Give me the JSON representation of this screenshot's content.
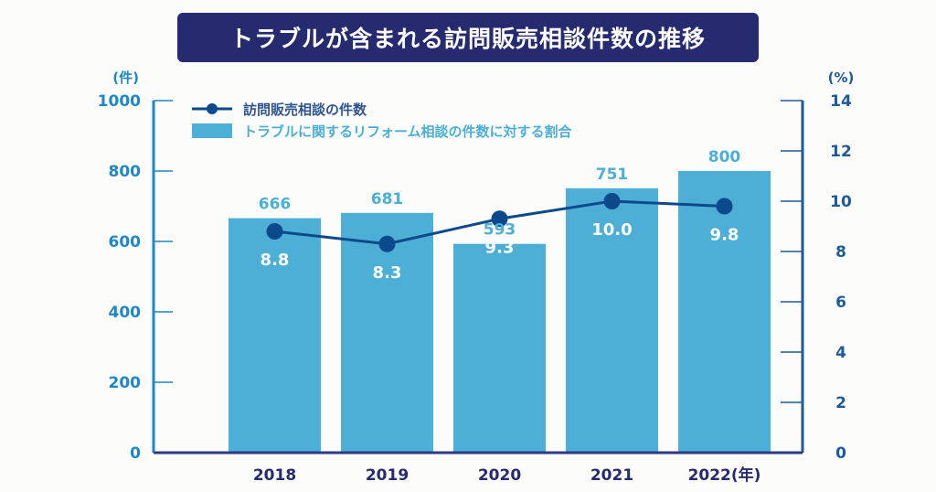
{
  "colors": {
    "title_bg": "#262b70",
    "bar": "#4daed6",
    "line": "#0c4a8c",
    "left_axis": "#1f86c8",
    "right_axis": "#1d5a99",
    "x_axis": "#2e3a86",
    "bar_label": "#4daed6",
    "line_label": "#ffffff",
    "x_tick_label": "#262b70"
  },
  "chart_data": {
    "type": "bar+line",
    "title": "トラブルが含まれる訪問販売相談件数の推移",
    "categories": [
      "2018",
      "2019",
      "2020",
      "2021",
      "2022"
    ],
    "x_unit_suffix": "(年)",
    "left_axis": {
      "unit_label": "(件)",
      "range": [
        0,
        1000
      ],
      "ticks": [
        0,
        200,
        400,
        600,
        800,
        1000
      ]
    },
    "right_axis": {
      "unit_label": "(%)",
      "range": [
        0,
        14
      ],
      "ticks": [
        0,
        2,
        4,
        6,
        8,
        10,
        12,
        14
      ]
    },
    "series": [
      {
        "name": "bar-series",
        "type": "bar",
        "axis": "left",
        "values": [
          666,
          681,
          593,
          751,
          800
        ],
        "labels": [
          "666",
          "681",
          "593",
          "751",
          "800"
        ]
      },
      {
        "name": "line-series",
        "type": "line",
        "axis": "right",
        "values": [
          8.8,
          8.3,
          9.3,
          10.0,
          9.8
        ],
        "labels": [
          "8.8",
          "8.3",
          "9.3",
          "10.0",
          "9.8"
        ]
      }
    ],
    "legend": {
      "placement": "top-left",
      "items": [
        {
          "kind": "line",
          "label": "訪問販売相談の件数"
        },
        {
          "kind": "bar",
          "label": "トラブルに関するリフォーム相談の件数に対する割合"
        }
      ]
    },
    "grid": false
  }
}
